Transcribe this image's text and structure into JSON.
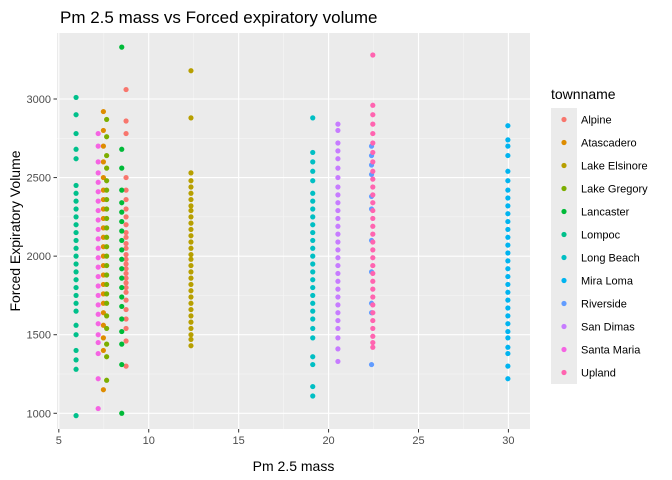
{
  "chart_data": {
    "type": "scatter",
    "title": "Pm 2.5 mass vs Forced expiratory volume",
    "xlabel": "Pm 2.5 mass",
    "ylabel": "Forced Expiratory Volume",
    "xlim": [
      4.9,
      31.2
    ],
    "ylim": [
      900,
      3420
    ],
    "x_ticks": [
      5,
      10,
      15,
      20,
      25,
      30
    ],
    "y_ticks": [
      1000,
      1500,
      2000,
      2500,
      3000
    ],
    "grid": true,
    "panel_background": "#ebebeb",
    "legend": {
      "title": "townname",
      "position": "right"
    },
    "series": [
      {
        "name": "Alpine",
        "color": "#f8766d",
        "x": 8.74,
        "values": [
          3060,
          2860,
          2780,
          2500,
          2420,
          2360,
          2300,
          2250,
          2200,
          2150,
          2120,
          2080,
          2050,
          2010,
          1980,
          1950,
          1920,
          1890,
          1860,
          1830,
          1800,
          1770,
          1720,
          1660,
          1600,
          1540,
          1460,
          1300
        ]
      },
      {
        "name": "Atascadero",
        "color": "#de8c00",
        "x": 7.48,
        "values": [
          2920,
          2800,
          2700,
          2600,
          2500,
          2420,
          2360,
          2300,
          2240,
          2180,
          2120,
          2060,
          2000,
          1940,
          1880,
          1820,
          1760,
          1700,
          1640,
          1560,
          1480,
          1400,
          1150
        ]
      },
      {
        "name": "Lake Elsinore",
        "color": "#b79f00",
        "x": 12.35,
        "values": [
          3180,
          2880,
          2530,
          2480,
          2440,
          2400,
          2360,
          2320,
          2290,
          2250,
          2210,
          2170,
          2130,
          2090,
          2050,
          2010,
          1980,
          1940,
          1900,
          1860,
          1820,
          1780,
          1740,
          1700,
          1660,
          1620,
          1580,
          1540,
          1500,
          1470,
          1430
        ]
      },
      {
        "name": "Lake Gregory",
        "color": "#7cae00",
        "x": 7.66,
        "values": [
          2870,
          2760,
          2640,
          2560,
          2480,
          2420,
          2360,
          2300,
          2240,
          2180,
          2120,
          2060,
          2000,
          1940,
          1880,
          1820,
          1760,
          1700,
          1620,
          1540,
          1440,
          1360,
          1210
        ]
      },
      {
        "name": "Lancaster",
        "color": "#00ba38",
        "x": 8.5,
        "values": [
          3330,
          2680,
          2560,
          2420,
          2340,
          2280,
          2220,
          2160,
          2100,
          2040,
          1980,
          1920,
          1860,
          1800,
          1740,
          1680,
          1600,
          1520,
          1440,
          1310,
          1000
        ]
      },
      {
        "name": "Lompoc",
        "color": "#00c08b",
        "x": 5.96,
        "values": [
          3010,
          2900,
          2780,
          2680,
          2620,
          2450,
          2400,
          2350,
          2300,
          2250,
          2200,
          2150,
          2100,
          2050,
          2000,
          1950,
          1900,
          1850,
          1800,
          1750,
          1700,
          1650,
          1560,
          1500,
          1400,
          1340,
          1280,
          985
        ]
      },
      {
        "name": "Long Beach",
        "color": "#00bfc4",
        "x": 19.12,
        "values": [
          2880,
          2660,
          2600,
          2540,
          2480,
          2400,
          2350,
          2300,
          2250,
          2200,
          2150,
          2100,
          2050,
          2000,
          1950,
          1900,
          1850,
          1800,
          1750,
          1700,
          1650,
          1600,
          1540,
          1480,
          1360,
          1310,
          1170,
          1110
        ]
      },
      {
        "name": "Mira Loma",
        "color": "#00b4f0",
        "x": 29.97,
        "values": [
          2830,
          2740,
          2700,
          2640,
          2540,
          2480,
          2420,
          2370,
          2320,
          2270,
          2220,
          2170,
          2120,
          2070,
          2020,
          1970,
          1920,
          1870,
          1820,
          1770,
          1720,
          1670,
          1620,
          1570,
          1520,
          1480,
          1420,
          1380,
          1300,
          1220
        ]
      },
      {
        "name": "Riverside",
        "color": "#619cff",
        "x": 22.39,
        "values": [
          2700,
          2640,
          2580,
          2520,
          2380,
          2300,
          2100,
          1900,
          1700,
          1640,
          1310
        ]
      },
      {
        "name": "San Dimas",
        "color": "#c77cff",
        "x": 20.52,
        "values": [
          2840,
          2800,
          2720,
          2670,
          2620,
          2560,
          2500,
          2440,
          2390,
          2340,
          2290,
          2240,
          2190,
          2140,
          2090,
          2040,
          1990,
          1940,
          1890,
          1840,
          1790,
          1740,
          1690,
          1640,
          1590,
          1540,
          1480,
          1410,
          1330
        ]
      },
      {
        "name": "Santa Maria",
        "color": "#f564e3",
        "x": 7.19,
        "values": [
          2780,
          2700,
          2600,
          2530,
          2470,
          2410,
          2350,
          2290,
          2230,
          2170,
          2110,
          2050,
          1990,
          1930,
          1870,
          1810,
          1750,
          1690,
          1630,
          1570,
          1500,
          1450,
          1380,
          1220,
          1030
        ]
      },
      {
        "name": "Upland",
        "color": "#ff64b0",
        "x": 22.46,
        "values": [
          3280,
          2960,
          2900,
          2840,
          2780,
          2720,
          2660,
          2600,
          2540,
          2490,
          2440,
          2390,
          2340,
          2290,
          2240,
          2190,
          2140,
          2090,
          2040,
          1990,
          1940,
          1890,
          1840,
          1790,
          1740,
          1690,
          1640,
          1590,
          1540,
          1490,
          1450,
          1420
        ]
      }
    ]
  }
}
